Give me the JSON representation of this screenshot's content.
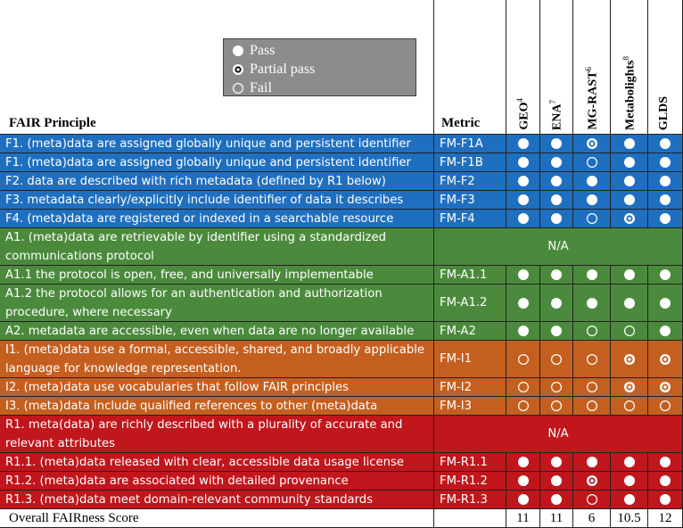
{
  "header": {
    "principle": "FAIR Principle",
    "metric": "Metric",
    "repositories": [
      {
        "name": "GEO",
        "sup": "4"
      },
      {
        "name": "ENA",
        "sup": "7"
      },
      {
        "name": "MG-RAST",
        "sup": "6"
      },
      {
        "name": "Metabolights",
        "sup": "8"
      },
      {
        "name": "GLDS"
      }
    ]
  },
  "legend": {
    "pass": "Pass",
    "partial": "Partial pass",
    "fail": "Fail"
  },
  "groups": [
    {
      "color": "#1f6fc0",
      "rows": [
        {
          "principle": "F1. (meta)data are assigned globally unique and persistent identifier",
          "metric": "FM-F1A",
          "scores": [
            "pass",
            "pass",
            "partial",
            "pass",
            "pass"
          ]
        },
        {
          "principle": "F1. (meta)data are assigned globally unique and persistent identifier",
          "metric": "FM-F1B",
          "scores": [
            "pass",
            "pass",
            "fail",
            "pass",
            "pass"
          ]
        },
        {
          "principle": "F2. data are described with rich metadata (defined by R1 below)",
          "metric": "FM-F2",
          "scores": [
            "pass",
            "pass",
            "pass",
            "pass",
            "pass"
          ]
        },
        {
          "principle": "F3. metadata clearly/explicitly include identifier of data it describes",
          "metric": "FM-F3",
          "scores": [
            "pass",
            "pass",
            "pass",
            "pass",
            "pass"
          ]
        },
        {
          "principle": "F4. (meta)data are registered or indexed in a searchable resource",
          "metric": "FM-F4",
          "scores": [
            "pass",
            "pass",
            "fail",
            "partial",
            "pass"
          ]
        }
      ]
    },
    {
      "color": "#4b8a3c",
      "rows": [
        {
          "principle": "A1. (meta)data are retrievable by identifier using a standardized communications protocol",
          "na": "N/A"
        },
        {
          "principle": "A1.1 the protocol is open, free, and universally implementable",
          "metric": "FM-A1.1",
          "scores": [
            "pass",
            "pass",
            "pass",
            "pass",
            "pass"
          ]
        },
        {
          "principle": "A1.2 the protocol allows for an authentication and authorization procedure, where necessary",
          "metric": "FM-A1.2",
          "scores": [
            "pass",
            "pass",
            "pass",
            "pass",
            "pass"
          ]
        },
        {
          "principle": "A2. metadata are accessible, even when data are no longer available",
          "metric": "FM-A2",
          "scores": [
            "pass",
            "pass",
            "fail",
            "fail",
            "pass"
          ]
        }
      ]
    },
    {
      "color": "#c55f1f",
      "rows": [
        {
          "principle": "I1. (meta)data use a formal, accessible, shared, and broadly applicable language for knowledge representation.",
          "metric": "FM-I1",
          "scores": [
            "fail",
            "fail",
            "fail",
            "partial",
            "partial"
          ]
        },
        {
          "principle": "I2. (meta)data use vocabularies that follow FAIR principles",
          "metric": "FM-I2",
          "scores": [
            "fail",
            "fail",
            "fail",
            "partial",
            "partial"
          ]
        },
        {
          "principle": "I3. (meta)data include qualified references to other (meta)data",
          "metric": "FM-I3",
          "scores": [
            "fail",
            "fail",
            "fail",
            "fail",
            "fail"
          ]
        }
      ]
    },
    {
      "color": "#c0161c",
      "rows": [
        {
          "principle": "R1. meta(data) are richly described with a plurality of accurate and relevant attributes",
          "na": "N/A"
        },
        {
          "principle": "R1.1. (meta)data released with clear, accessible data usage license",
          "metric": "FM-R1.1",
          "scores": [
            "pass",
            "pass",
            "pass",
            "pass",
            "pass"
          ]
        },
        {
          "principle": "R1.2. (meta)data are associated with detailed provenance",
          "metric": "FM-R1.2",
          "scores": [
            "pass",
            "pass",
            "partial",
            "pass",
            "pass"
          ]
        },
        {
          "principle": "R1.3. (meta)data meet domain-relevant community standards",
          "metric": "FM-R1.3",
          "scores": [
            "pass",
            "pass",
            "fail",
            "pass",
            "pass"
          ]
        }
      ]
    }
  ],
  "overall": {
    "label": "Overall FAIRness Score",
    "scores": [
      11,
      11,
      6,
      10.5,
      12
    ]
  }
}
